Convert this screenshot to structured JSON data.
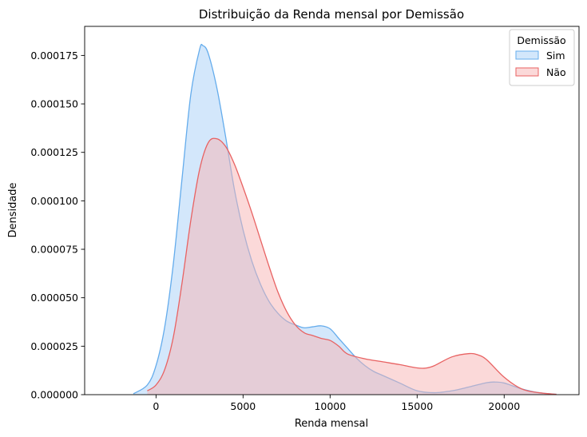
{
  "chart_data": {
    "type": "area",
    "title": "Distribuição da Renda mensal por Demissão",
    "xlabel": "Renda mensal",
    "ylabel": "Densidade",
    "xlim": [
      -4100,
      24300
    ],
    "ylim": [
      0,
      0.00019
    ],
    "xticks": [
      0,
      5000,
      10000,
      15000,
      20000
    ],
    "xtick_labels": [
      "0",
      "5000",
      "10000",
      "15000",
      "20000"
    ],
    "yticks": [
      0,
      2.5e-05,
      5e-05,
      7.5e-05,
      0.0001,
      0.000125,
      0.00015,
      0.000175
    ],
    "ytick_labels": [
      "0.000000",
      "0.000025",
      "0.000050",
      "0.000075",
      "0.000100",
      "0.000125",
      "0.000150",
      "0.000175"
    ],
    "grid": false,
    "legend": {
      "title": "Demissão",
      "placement": "top-right"
    },
    "series": [
      {
        "name": "Sim",
        "line_color": "#64acec",
        "fill_color": "#a8d0f8",
        "x": [
          -1300,
          -500,
          0,
          500,
          1000,
          1500,
          2000,
          2500,
          2700,
          3000,
          3500,
          4000,
          4500,
          5000,
          5500,
          6000,
          6500,
          7000,
          7500,
          8000,
          8500,
          9000,
          9500,
          10000,
          10500,
          11000,
          11500,
          12000,
          12500,
          13000,
          14000,
          15000,
          16000,
          17000,
          18000,
          19000,
          19500,
          20000,
          21000,
          22000,
          23000
        ],
        "y": [
          5e-07,
          5e-06,
          1.5e-05,
          3.5e-05,
          6.8e-05,
          0.000112,
          0.000155,
          0.000178,
          0.00018,
          0.000176,
          0.000158,
          0.000133,
          0.000106,
          8.5e-05,
          6.9e-05,
          5.7e-05,
          4.8e-05,
          4.2e-05,
          3.8e-05,
          3.6e-05,
          3.45e-05,
          3.5e-05,
          3.55e-05,
          3.4e-05,
          2.9e-05,
          2.4e-05,
          1.9e-05,
          1.5e-05,
          1.2e-05,
          1e-05,
          6e-06,
          2e-06,
          1e-06,
          2e-06,
          4e-06,
          6.2e-06,
          6.5e-06,
          6e-06,
          3e-06,
          1e-06,
          2e-07
        ]
      },
      {
        "name": "Não",
        "line_color": "#e86262",
        "fill_color": "#f8b4b4",
        "x": [
          -500,
          0,
          500,
          1000,
          1500,
          2000,
          2500,
          3000,
          3500,
          4000,
          4500,
          5000,
          5500,
          6000,
          6500,
          7000,
          7500,
          8000,
          8500,
          9000,
          9500,
          10000,
          10500,
          11000,
          12000,
          13000,
          14000,
          15000,
          15500,
          16000,
          17000,
          18000,
          18500,
          19000,
          20000,
          21000,
          22000,
          23000
        ],
        "y": [
          2e-06,
          5e-06,
          1.3e-05,
          3e-05,
          5.8e-05,
          9e-05,
          0.000116,
          0.00013,
          0.000132,
          0.000128,
          0.000119,
          0.000107,
          9.4e-05,
          8e-05,
          6.6e-05,
          5.3e-05,
          4.3e-05,
          3.6e-05,
          3.2e-05,
          3.05e-05,
          2.9e-05,
          2.8e-05,
          2.5e-05,
          2.1e-05,
          1.85e-05,
          1.7e-05,
          1.55e-05,
          1.38e-05,
          1.37e-05,
          1.5e-05,
          1.95e-05,
          2.12e-05,
          2.05e-05,
          1.8e-05,
          9e-06,
          3e-06,
          1e-06,
          2e-07
        ]
      }
    ]
  }
}
